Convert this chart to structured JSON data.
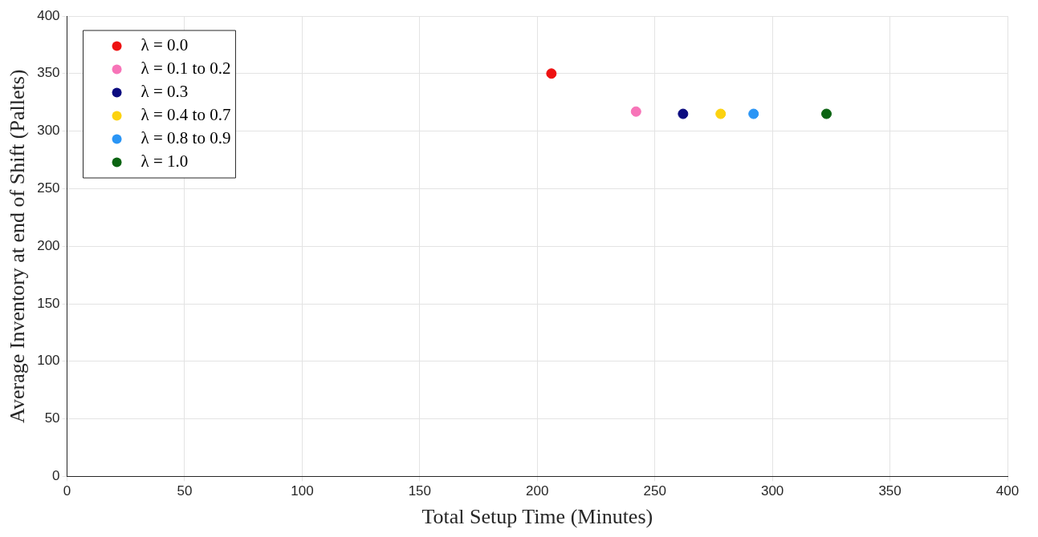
{
  "chart_data": {
    "type": "scatter",
    "xlabel": "Total Setup Time (Minutes)",
    "ylabel": "Average Inventory at end of Shift (Pallets)",
    "xlim": [
      0,
      400
    ],
    "xticks": [
      0,
      50,
      100,
      150,
      200,
      250,
      300,
      350,
      400
    ],
    "ylim": [
      0,
      400
    ],
    "yticks": [
      0,
      50,
      100,
      150,
      200,
      250,
      300,
      350,
      400
    ],
    "grid": true,
    "legend": "top left",
    "marker": "circle",
    "series": [
      {
        "name": "λ = 0.0",
        "color": "#ee1111",
        "x": [
          206
        ],
        "values": [
          350
        ]
      },
      {
        "name": "λ = 0.1 to 0.2",
        "color": "#f774b8",
        "x": [
          242
        ],
        "values": [
          317
        ]
      },
      {
        "name": "λ = 0.3",
        "color": "#0c0c80",
        "x": [
          262
        ],
        "values": [
          315
        ]
      },
      {
        "name": "λ = 0.4 to 0.7",
        "color": "#fcd20f",
        "x": [
          278
        ],
        "values": [
          315
        ]
      },
      {
        "name": "λ = 0.8 to 0.9",
        "color": "#2a95f5",
        "x": [
          292
        ],
        "values": [
          315
        ]
      },
      {
        "name": "λ = 1.0",
        "color": "#0b6412",
        "x": [
          323
        ],
        "values": [
          315
        ]
      }
    ]
  }
}
